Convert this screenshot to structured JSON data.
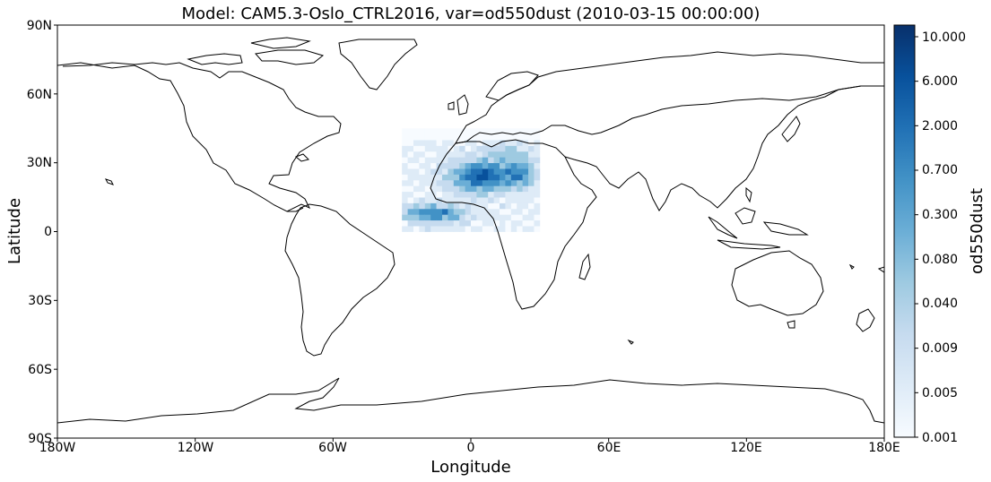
{
  "title": "Model: CAM5.3-Oslo_CTRL2016, var=od550dust (2010-03-15 00:00:00)",
  "map": {
    "xlabel": "Longitude",
    "ylabel": "Latitude",
    "x_ticks": [
      "180W",
      "120W",
      "60W",
      "0",
      "60E",
      "120E",
      "180E"
    ],
    "x_tick_values": [
      -180,
      -120,
      -60,
      0,
      60,
      120,
      180
    ],
    "y_ticks": [
      "90N",
      "60N",
      "30N",
      "0",
      "30S",
      "60S",
      "90S"
    ],
    "y_tick_values": [
      90,
      60,
      30,
      0,
      -30,
      -60,
      -90
    ],
    "xlim": [
      -180,
      180
    ],
    "ylim": [
      -90,
      90
    ],
    "projection": "PlateCarree",
    "coastlines": true,
    "field_region": {
      "lon": [
        -30,
        30
      ],
      "lat": [
        0,
        45
      ]
    }
  },
  "colorbar": {
    "label": "od550dust",
    "ticks": [
      "10.000",
      "6.000",
      "2.000",
      "0.700",
      "0.300",
      "0.080",
      "0.040",
      "0.009",
      "0.005",
      "0.001"
    ],
    "colormap": "Blues",
    "color_low": "#f7fbff",
    "color_high": "#08306b"
  }
}
